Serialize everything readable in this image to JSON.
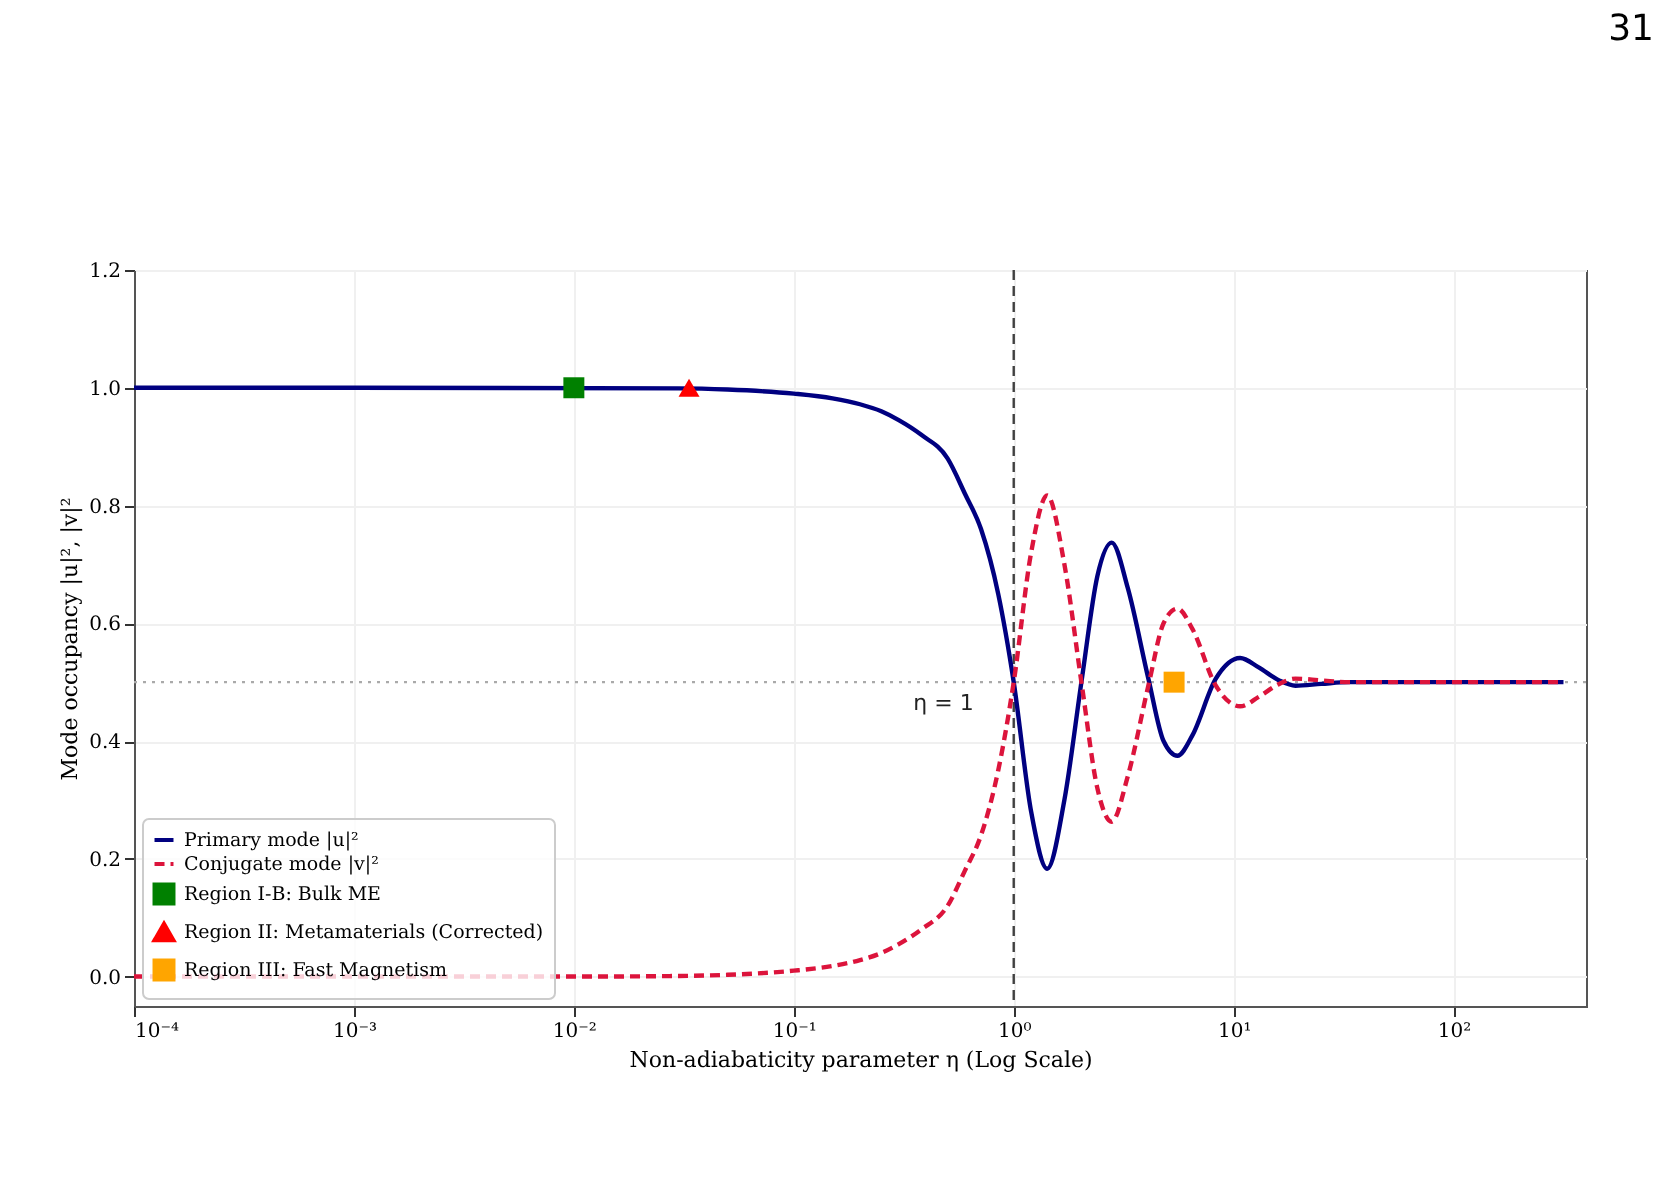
{
  "chart_data": {
    "type": "line",
    "xlabel": "Non-adiabaticity parameter η (Log Scale)",
    "ylabel": "Mode occupancy |u|², |v|²",
    "log": "x",
    "xlim": [
      0.0001,
      400
    ],
    "ylim": [
      -0.05,
      1.2
    ],
    "xticks": [
      {
        "value": 0.0001,
        "label": "10⁻⁴"
      },
      {
        "value": 0.001,
        "label": "10⁻³"
      },
      {
        "value": 0.01,
        "label": "10⁻²"
      },
      {
        "value": 0.1,
        "label": "10⁻¹"
      },
      {
        "value": 1,
        "label": "10⁰"
      },
      {
        "value": 10,
        "label": "10¹"
      },
      {
        "value": 100,
        "label": "10²"
      }
    ],
    "yticks": [
      {
        "value": 0,
        "label": "0.0"
      },
      0.2,
      0.4,
      0.6,
      0.8,
      {
        "value": 1,
        "label": "1.0"
      },
      1.2
    ],
    "grid": true,
    "legend": "bottom left",
    "series": [
      {
        "name": "Primary mode |u|²",
        "color": "#000080",
        "line_style": "solid",
        "x": [
          0.0001,
          0.001,
          0.03,
          0.05,
          0.1,
          0.15,
          0.2,
          0.25,
          0.3,
          0.38,
          0.5,
          0.6,
          0.71,
          0.85,
          1,
          1.2,
          1.42,
          1.7,
          2.04,
          2.4,
          2.79,
          3.3,
          4.1,
          4.8,
          5.55,
          6.5,
          8.27,
          10.7,
          13,
          16.1,
          19.1,
          25,
          33.5,
          100,
          316
        ],
        "values": [
          1.0,
          1.0,
          0.999,
          0.997,
          0.99,
          0.982,
          0.972,
          0.96,
          0.945,
          0.92,
          0.88,
          0.82,
          0.76,
          0.65,
          0.5,
          0.28,
          0.183,
          0.3,
          0.505,
          0.68,
          0.737,
          0.66,
          0.505,
          0.4,
          0.375,
          0.41,
          0.505,
          0.541,
          0.525,
          0.503,
          0.494,
          0.497,
          0.5,
          0.5,
          0.5
        ]
      },
      {
        "name": "Conjugate mode |v|²",
        "color": "#dc143c",
        "line_style": "dashed",
        "x": [
          0.0001,
          0.01,
          0.03,
          0.05,
          0.1,
          0.15,
          0.2,
          0.25,
          0.3,
          0.38,
          0.5,
          0.6,
          0.71,
          0.85,
          1,
          1.2,
          1.42,
          1.7,
          2.04,
          2.4,
          2.79,
          3.3,
          4.1,
          4.8,
          5.55,
          6.5,
          8.27,
          10.7,
          13,
          16.1,
          19.1,
          25,
          33.5,
          100,
          316
        ],
        "values": [
          0.0,
          0.0,
          0.001,
          0.003,
          0.01,
          0.018,
          0.028,
          0.04,
          0.055,
          0.08,
          0.12,
          0.18,
          0.24,
          0.35,
          0.5,
          0.72,
          0.817,
          0.7,
          0.495,
          0.32,
          0.263,
          0.34,
          0.495,
          0.6,
          0.625,
          0.59,
          0.495,
          0.459,
          0.475,
          0.497,
          0.506,
          0.503,
          0.5,
          0.5,
          0.5
        ]
      },
      {
        "name": "Region I-B: Bulk ME",
        "type": "scatter",
        "marker": "square",
        "color": "#008000",
        "x": [
          0.01
        ],
        "values": [
          1.0
        ]
      },
      {
        "name": "Region II: Metamaterials (Corrected)",
        "type": "scatter",
        "marker": "triangle",
        "color": "#ff0000",
        "x": [
          0.0334
        ],
        "values": [
          1.0
        ]
      },
      {
        "name": "Region III: Fast Magnetism",
        "type": "scatter",
        "marker": "square",
        "color": "#ffa500",
        "x": [
          5.36
        ],
        "values": [
          0.5
        ]
      }
    ],
    "ref_lines": [
      {
        "axis": "x",
        "value": 1,
        "label": "η = 1",
        "color": "#404040",
        "line_style": "dashed"
      },
      {
        "axis": "y",
        "value": 0.5,
        "color": "#aaaaaa",
        "line_style": "dotted"
      }
    ],
    "annotations": [
      "31"
    ]
  }
}
